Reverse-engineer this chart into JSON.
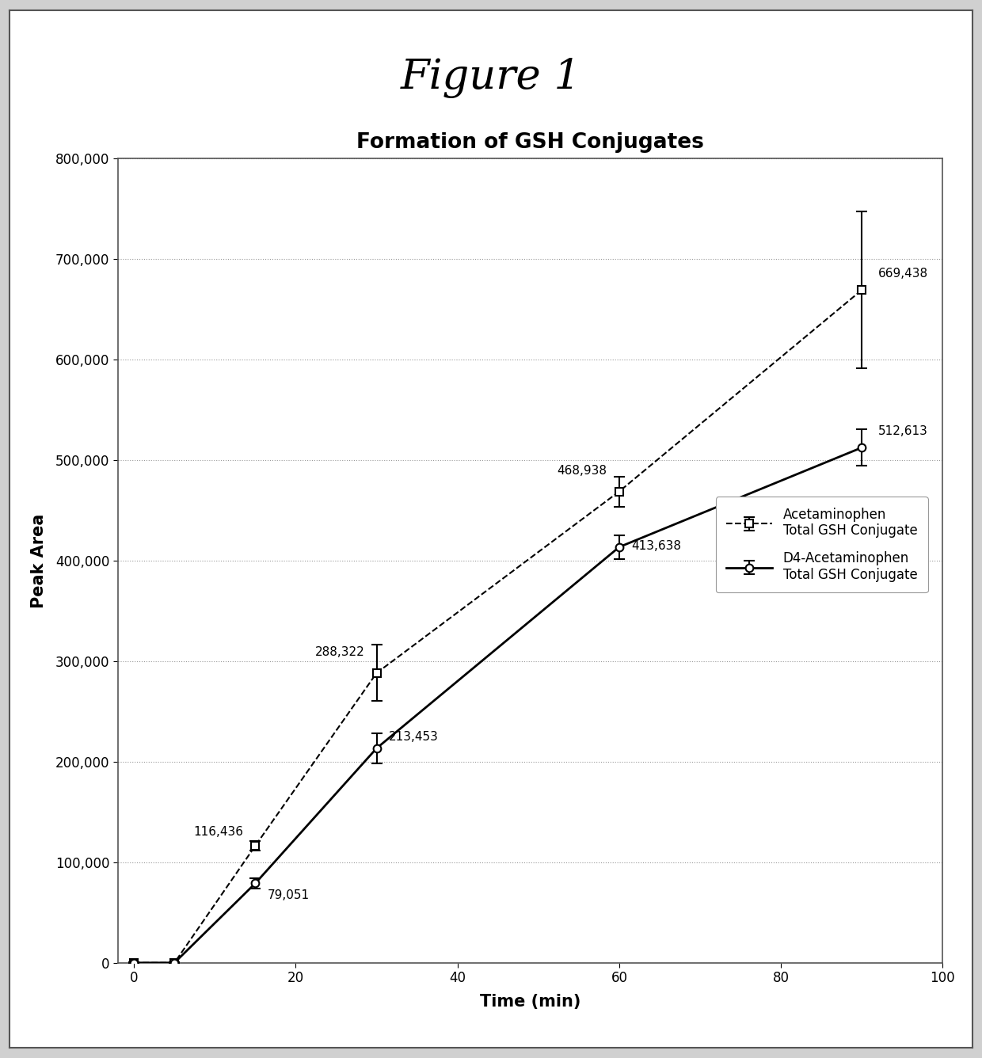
{
  "title_figure": "Figure 1",
  "title_chart": "Formation of GSH Conjugates",
  "xlabel": "Time (min)",
  "ylabel": "Peak Area",
  "xlim": [
    -2,
    100
  ],
  "ylim": [
    0,
    800000
  ],
  "xticks": [
    0,
    20,
    40,
    60,
    80,
    100
  ],
  "yticks": [
    0,
    100000,
    200000,
    300000,
    400000,
    500000,
    600000,
    700000,
    800000
  ],
  "series1": {
    "label": "Acetaminophen\nTotal GSH Conjugate",
    "x": [
      0,
      5,
      15,
      30,
      60,
      90
    ],
    "y": [
      0,
      0,
      116436,
      288322,
      468938,
      669438
    ],
    "yerr": [
      500,
      500,
      5000,
      28000,
      15000,
      78000
    ],
    "color": "#000000",
    "linestyle": "--",
    "marker": "s",
    "markersize": 7
  },
  "series2": {
    "label": "D4-Acetaminophen\nTotal GSH Conjugate",
    "x": [
      0,
      5,
      15,
      30,
      60,
      90
    ],
    "y": [
      0,
      0,
      79051,
      213453,
      413638,
      512613
    ],
    "yerr": [
      500,
      500,
      5000,
      15000,
      12000,
      18000
    ],
    "color": "#000000",
    "linestyle": "-",
    "marker": "o",
    "markersize": 7
  },
  "background_color": "#ffffff",
  "grid_color": "#999999",
  "figure_title_fontsize": 38,
  "chart_title_fontsize": 19,
  "axis_label_fontsize": 15,
  "tick_fontsize": 12,
  "annotation_fontsize": 11,
  "legend_fontsize": 12
}
